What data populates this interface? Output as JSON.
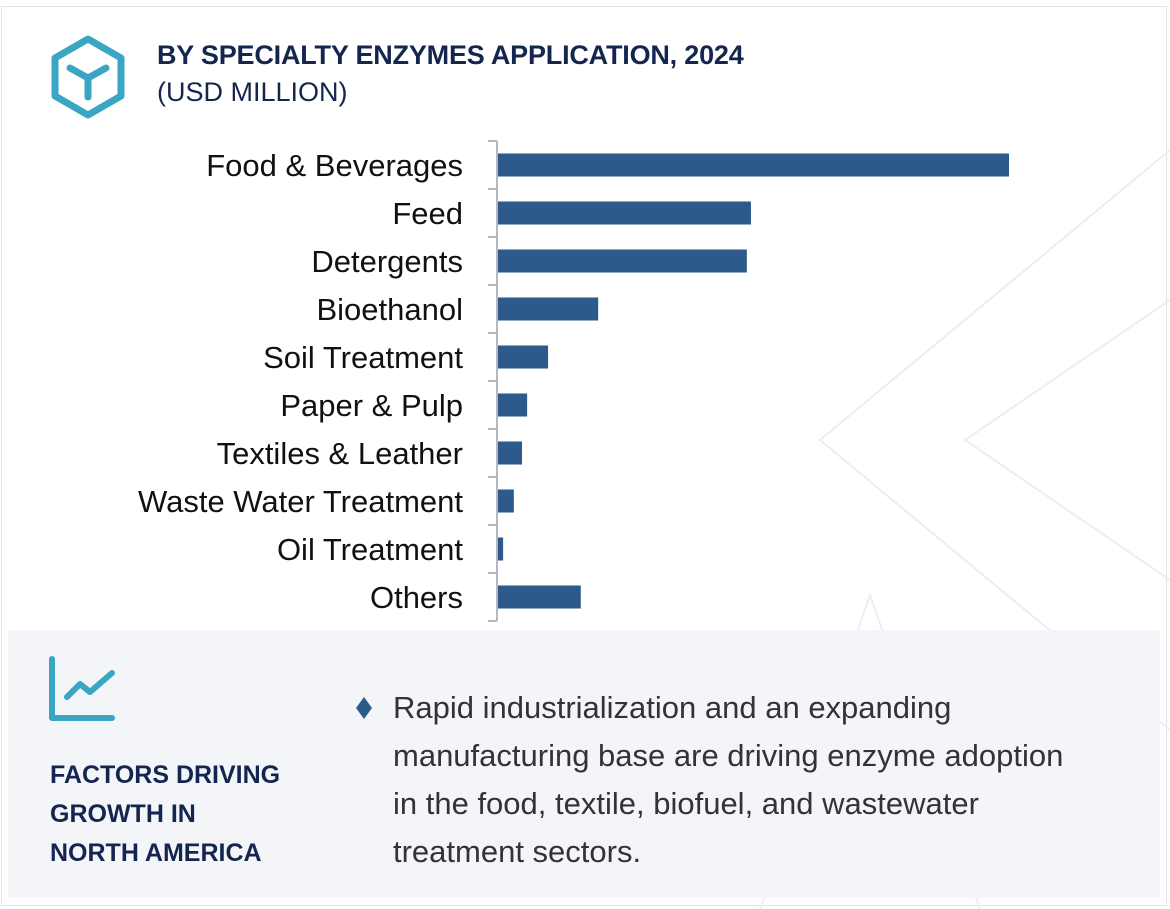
{
  "header": {
    "title": "BY SPECIALTY ENZYMES APPLICATION, 2024",
    "subtitle": "(USD MILLION)",
    "icon": "hexagon-enzyme-icon"
  },
  "chart_data": {
    "type": "bar",
    "orientation": "horizontal",
    "title": "BY SPECIALTY ENZYMES APPLICATION, 2024",
    "ylabel": "(USD MILLION)",
    "xlabel": "",
    "categories": [
      "Food & Beverages",
      "Feed",
      "Detergents",
      "Bioethanol",
      "Soil Treatment",
      "Paper & Pulp",
      "Textiles & Leather",
      "Waste Water Treatment",
      "Oil Treatment",
      "Others"
    ],
    "values": [
      100,
      49.5,
      48.7,
      19.6,
      9.8,
      5.7,
      4.7,
      3.1,
      1.0,
      16.2
    ],
    "value_note": "relative to largest bar (no axis values shown)",
    "xlim": [
      0,
      100
    ],
    "grid": false,
    "bar_color": "#2d5a8a"
  },
  "footer": {
    "icon": "trend-chart-icon",
    "title_lines": [
      "FACTORS DRIVING",
      "GROWTH IN",
      "NORTH AMERICA"
    ],
    "bullet_text": "Rapid industrialization and an expanding manufacturing base are driving enzyme adoption in the food, textile, biofuel, and wastewater treatment sectors.",
    "accent": "#3aa6c4",
    "navy": "#14254f"
  }
}
